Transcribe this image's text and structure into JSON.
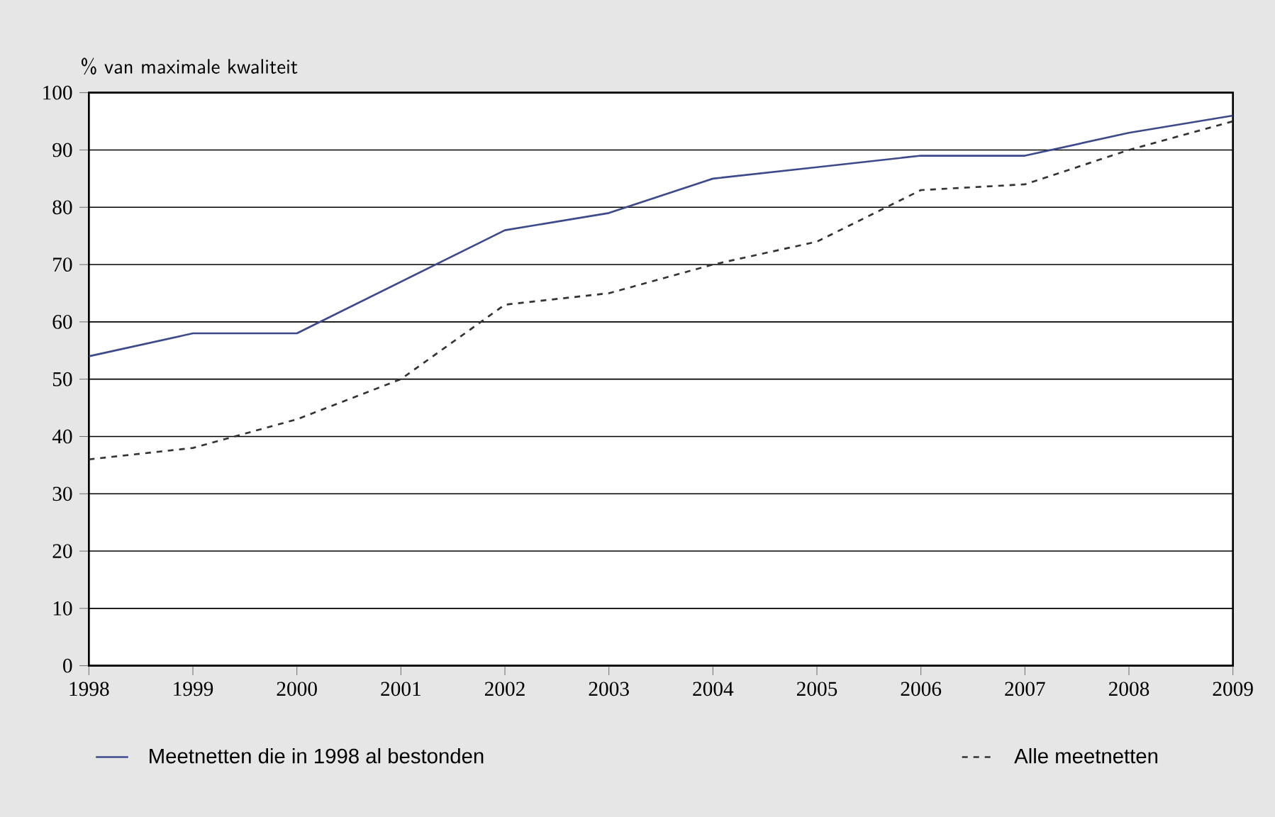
{
  "chart_data": {
    "type": "line",
    "ylabel": "% van maximale kwaliteit",
    "x": [
      1998,
      1999,
      2000,
      2001,
      2002,
      2003,
      2004,
      2005,
      2006,
      2007,
      2008,
      2009
    ],
    "series": [
      {
        "name": "Meetnetten die in 1998 al bestonden",
        "color": "#3c4a8c",
        "line_style": "solid",
        "values": [
          54,
          58,
          58,
          67,
          76,
          79,
          85,
          87,
          89,
          89,
          93,
          96
        ]
      },
      {
        "name": "Alle meetnetten",
        "color": "#333333",
        "line_style": "dashed",
        "values": [
          36,
          38,
          43,
          50,
          63,
          65,
          70,
          74,
          83,
          84,
          90,
          95
        ]
      }
    ],
    "xlim": [
      1998,
      2009
    ],
    "xticks": [
      1998,
      1999,
      2000,
      2001,
      2002,
      2003,
      2004,
      2005,
      2006,
      2007,
      2008,
      2009
    ],
    "ylim": [
      0,
      100
    ],
    "yticks": [
      0,
      10,
      20,
      30,
      40,
      50,
      60,
      70,
      80,
      90,
      100
    ],
    "grid": "y",
    "legend": "bottom",
    "marker": "none"
  }
}
